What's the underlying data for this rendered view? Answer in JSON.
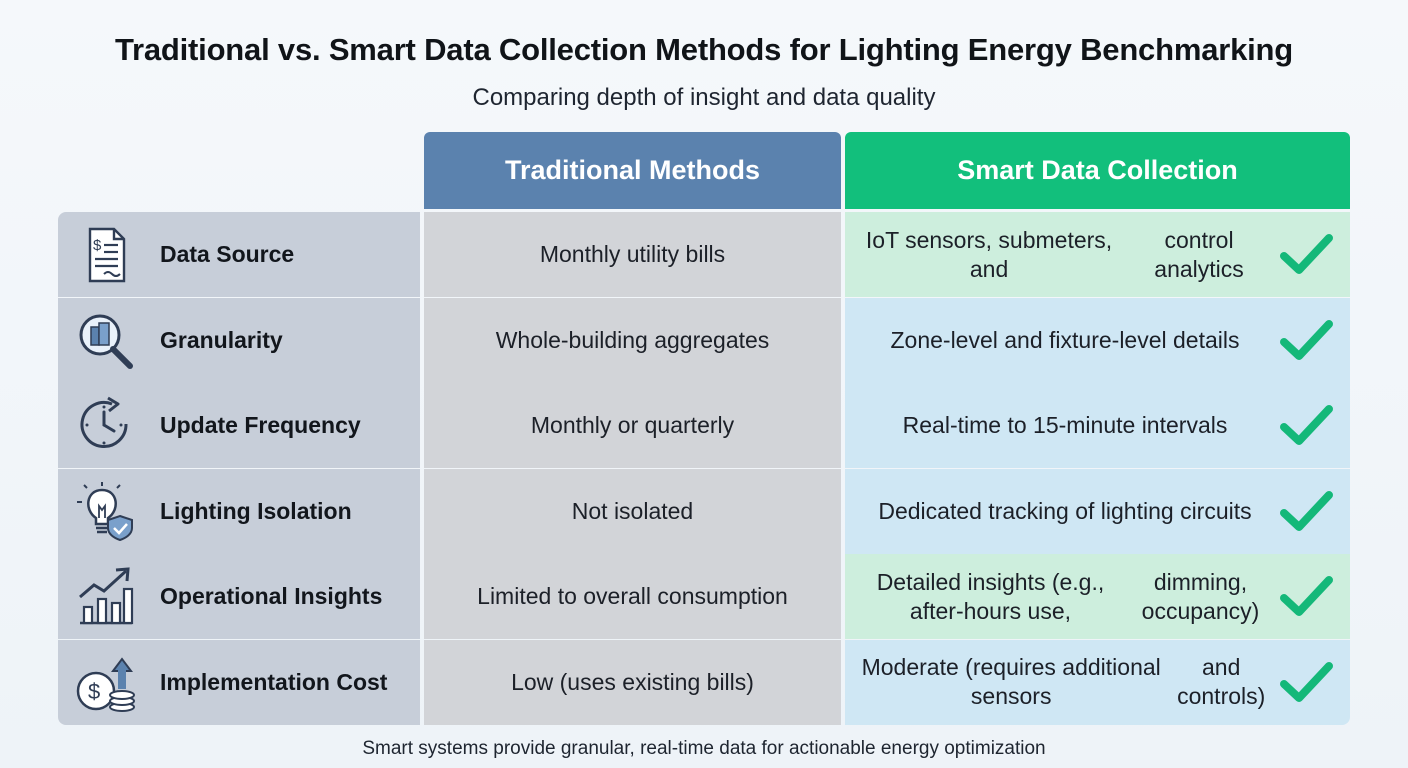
{
  "title": "Traditional vs. Smart Data Collection Methods for Lighting Energy Benchmarking",
  "subtitle": "Comparing depth of insight and data quality",
  "columns": {
    "traditional": "Traditional Methods",
    "smart": "Smart Data Collection"
  },
  "rows": [
    {
      "label": "Data Source",
      "icon": "bill-document-icon",
      "traditional": "Monthly utility bills",
      "smart_line1": "IoT sensors, submeters, and",
      "smart_line2": "control analytics",
      "smart_bg": "#cdeedd"
    },
    {
      "label": "Granularity",
      "icon": "magnify-building-icon",
      "traditional": "Whole-building aggregates",
      "smart_line1": "Zone-level and fixture-level details",
      "smart_line2": "",
      "smart_bg": "#cfe7f4"
    },
    {
      "label": "Update Frequency",
      "icon": "clock-refresh-icon",
      "traditional": "Monthly or quarterly",
      "smart_line1": "Real-time to 15-minute intervals",
      "smart_line2": "",
      "smart_bg": "#cfe7f4"
    },
    {
      "label": "Lighting Isolation",
      "icon": "lightbulb-shield-icon",
      "traditional": "Not isolated",
      "smart_line1": "Dedicated tracking of lighting circuits",
      "smart_line2": "",
      "smart_bg": "#cfe7f4"
    },
    {
      "label": "Operational Insights",
      "icon": "growth-chart-icon",
      "traditional": "Limited to overall consumption",
      "smart_line1": "Detailed insights (e.g., after-hours use,",
      "smart_line2": "dimming, occupancy)",
      "smart_bg": "#cdeedd"
    },
    {
      "label": "Implementation Cost",
      "icon": "dollar-coins-icon",
      "traditional": "Low (uses existing bills)",
      "smart_line1": "Moderate (requires additional sensors",
      "smart_line2": "and controls)",
      "smart_bg": "#cfe7f4"
    }
  ],
  "footer": "Smart systems provide granular, real-time data for actionable energy optimization",
  "colors": {
    "traditional_header": "#5b82ae",
    "smart_header": "#12bf7c",
    "check": "#14b879",
    "icon_stroke": "#2f3d55"
  }
}
